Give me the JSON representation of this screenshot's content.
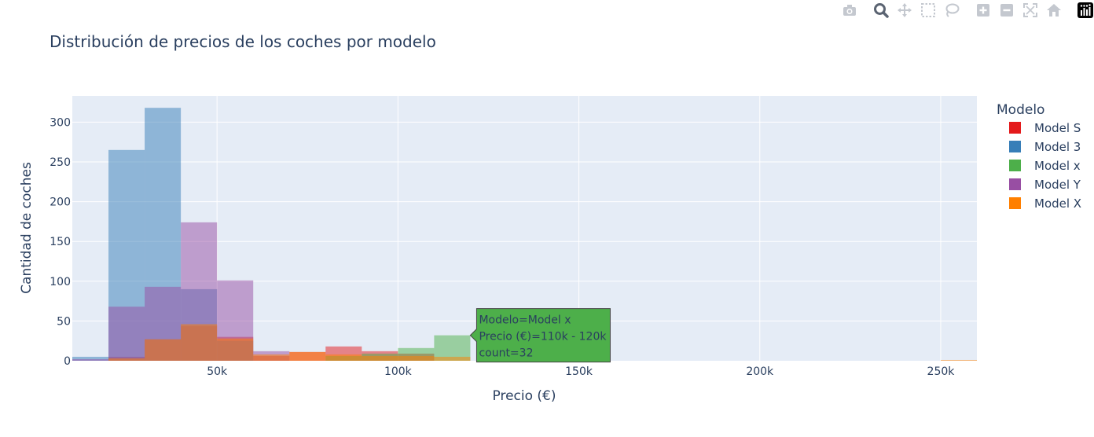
{
  "toolbar": {
    "buttons": [
      {
        "name": "download-png-icon",
        "label": "Download plot as a png"
      },
      {
        "name": "zoom-icon",
        "label": "Zoom"
      },
      {
        "name": "pan-icon",
        "label": "Pan"
      },
      {
        "name": "box-select-icon",
        "label": "Box Select"
      },
      {
        "name": "lasso-select-icon",
        "label": "Lasso Select"
      },
      {
        "name": "zoom-in-icon",
        "label": "Zoom in"
      },
      {
        "name": "zoom-out-icon",
        "label": "Zoom out"
      },
      {
        "name": "autoscale-icon",
        "label": "Autoscale"
      },
      {
        "name": "reset-axes-icon",
        "label": "Reset axes"
      },
      {
        "name": "plotly-logo-icon",
        "label": "Produced with Plotly"
      }
    ]
  },
  "chart_data": {
    "type": "bar",
    "subtype": "overlaid histogram",
    "title": "Distribución de precios de los coches por modelo",
    "xlabel": "Precio (€)",
    "ylabel": "Cantidad de coches",
    "xlim": [
      10000,
      260000
    ],
    "ylim": [
      0,
      333
    ],
    "bin_width": 10000,
    "x_ticks": [
      {
        "value": 50000,
        "label": "50k"
      },
      {
        "value": 100000,
        "label": "100k"
      },
      {
        "value": 150000,
        "label": "150k"
      },
      {
        "value": 200000,
        "label": "200k"
      },
      {
        "value": 250000,
        "label": "250k"
      }
    ],
    "y_ticks": [
      0,
      50,
      100,
      150,
      200,
      250,
      300
    ],
    "legend_title": "Modelo",
    "legend_position": "right",
    "series": [
      {
        "name": "Model S",
        "color": "#e41a1c",
        "bins": [
          [
            20000,
            5
          ],
          [
            30000,
            27
          ],
          [
            40000,
            44
          ],
          [
            50000,
            30
          ],
          [
            60000,
            6
          ],
          [
            70000,
            11
          ],
          [
            80000,
            18
          ],
          [
            90000,
            12
          ],
          [
            100000,
            9
          ]
        ]
      },
      {
        "name": "Model 3",
        "color": "#377eb8",
        "bins": [
          [
            10000,
            5
          ],
          [
            20000,
            265
          ],
          [
            30000,
            318
          ],
          [
            40000,
            90
          ],
          [
            50000,
            25
          ]
        ]
      },
      {
        "name": "Model x",
        "color": "#4daf4a",
        "bins": [
          [
            80000,
            6
          ],
          [
            90000,
            9
          ],
          [
            100000,
            16
          ],
          [
            110000,
            32
          ]
        ]
      },
      {
        "name": "Model Y",
        "color": "#984ea3",
        "bins": [
          [
            10000,
            2
          ],
          [
            20000,
            68
          ],
          [
            30000,
            93
          ],
          [
            40000,
            174
          ],
          [
            50000,
            101
          ],
          [
            60000,
            12
          ]
        ]
      },
      {
        "name": "Model X",
        "color": "#ff7f00",
        "bins": [
          [
            20000,
            3
          ],
          [
            30000,
            27
          ],
          [
            40000,
            46
          ],
          [
            50000,
            28
          ],
          [
            60000,
            8
          ],
          [
            70000,
            11
          ],
          [
            80000,
            8
          ],
          [
            90000,
            6
          ],
          [
            100000,
            6
          ],
          [
            110000,
            5
          ],
          [
            250000,
            1
          ]
        ]
      }
    ],
    "hover": {
      "series": "Model x",
      "lines": [
        "Modelo=Model x",
        "Precio (€)=110k - 120k",
        "count=32"
      ]
    }
  }
}
